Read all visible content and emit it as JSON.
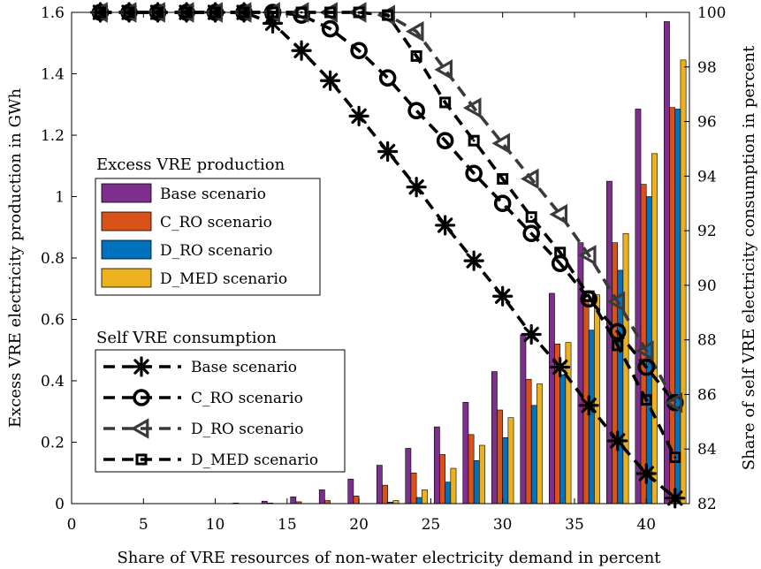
{
  "chart_data": {
    "type": "bar+line",
    "xlabel": "Share of VRE resources of non-water electricity demand in percent",
    "ylabel_left": "Excess VRE electricity production in GWh",
    "ylabel_right": "Share of self VRE electricity consumption in percent",
    "xlim": [
      0,
      43
    ],
    "ylim_left": [
      0,
      1.6
    ],
    "ylim_right": [
      82,
      100
    ],
    "xticks": [
      0,
      5,
      10,
      15,
      20,
      25,
      30,
      35,
      40
    ],
    "xtick_labels": [
      "0",
      "5",
      "10",
      "15",
      "20",
      "25",
      "30",
      "35",
      "40"
    ],
    "yticks_left": [
      0,
      0.2,
      0.4,
      0.6,
      0.8,
      1,
      1.2,
      1.4,
      1.6
    ],
    "ytick_labels_left": [
      "0",
      "0.2",
      "0.4",
      "0.6",
      "0.8",
      "1",
      "1.2",
      "1.4",
      "1.6"
    ],
    "yticks_right": [
      82,
      84,
      86,
      88,
      90,
      92,
      94,
      96,
      98,
      100
    ],
    "ytick_labels_right": [
      "82",
      "84",
      "86",
      "88",
      "90",
      "92",
      "94",
      "96",
      "98",
      "100"
    ],
    "grid": false,
    "bar_legend_title": "Excess VRE production",
    "line_legend_title": "Self VRE consumption",
    "x": [
      2,
      4,
      6,
      8,
      10,
      12,
      14,
      16,
      18,
      20,
      22,
      24,
      26,
      28,
      30,
      32,
      34,
      36,
      38,
      40,
      42
    ],
    "bar_series": [
      {
        "name": "Base scenario",
        "color": "#7E2F8E",
        "values": [
          0,
          0,
          0,
          0,
          0,
          0.002,
          0.008,
          0.022,
          0.045,
          0.08,
          0.125,
          0.18,
          0.25,
          0.33,
          0.43,
          0.55,
          0.685,
          0.85,
          1.05,
          1.285,
          1.57
        ]
      },
      {
        "name": "C_RO scenario",
        "color": "#D95319",
        "values": [
          0,
          0,
          0,
          0,
          0,
          0,
          0.002,
          0.006,
          0.01,
          0.025,
          0.06,
          0.1,
          0.16,
          0.225,
          0.305,
          0.405,
          0.52,
          0.665,
          0.85,
          1.04,
          1.29
        ]
      },
      {
        "name": "D_RO scenario",
        "color": "#0072BD",
        "values": [
          0,
          0,
          0,
          0,
          0,
          0,
          0,
          0,
          0,
          0,
          0.005,
          0.02,
          0.07,
          0.14,
          0.215,
          0.32,
          0.42,
          0.565,
          0.76,
          1.0,
          1.285
        ]
      },
      {
        "name": "D_MED scenario",
        "color": "#EDB120",
        "values": [
          0,
          0,
          0,
          0,
          0,
          0,
          0,
          0,
          0,
          0,
          0.01,
          0.045,
          0.115,
          0.19,
          0.28,
          0.39,
          0.525,
          0.68,
          0.88,
          1.14,
          1.445
        ]
      }
    ],
    "line_series": [
      {
        "name": "Base scenario",
        "marker": "asterisk",
        "color": "#000000",
        "values": [
          100,
          100,
          100,
          100,
          100,
          100,
          99.6,
          98.6,
          97.5,
          96.2,
          94.9,
          93.6,
          92.2,
          90.9,
          89.6,
          88.2,
          87.0,
          85.6,
          84.3,
          83.1,
          82.2
        ]
      },
      {
        "name": "C_RO scenario",
        "marker": "circle",
        "color": "#000000",
        "values": [
          100,
          100,
          100,
          100,
          100,
          100,
          100,
          99.9,
          99.4,
          98.6,
          97.6,
          96.4,
          95.3,
          94.1,
          93.0,
          91.9,
          90.8,
          89.5,
          88.3,
          87.0,
          85.7
        ]
      },
      {
        "name": "D_RO scenario",
        "marker": "triangle-left",
        "color": "#3a3a3a",
        "values": [
          100,
          100,
          100,
          100,
          100,
          100,
          100,
          100,
          100,
          100,
          99.9,
          99.3,
          97.9,
          96.5,
          95.2,
          93.9,
          92.6,
          91.1,
          89.4,
          87.6,
          85.7
        ]
      },
      {
        "name": "D_MED scenario",
        "marker": "square-dot",
        "color": "#000000",
        "values": [
          100,
          100,
          100,
          100,
          100,
          100,
          100,
          100,
          100,
          100,
          99.9,
          98.4,
          96.7,
          95.3,
          93.9,
          92.5,
          91.2,
          89.6,
          87.8,
          85.8,
          83.7
        ]
      }
    ]
  }
}
